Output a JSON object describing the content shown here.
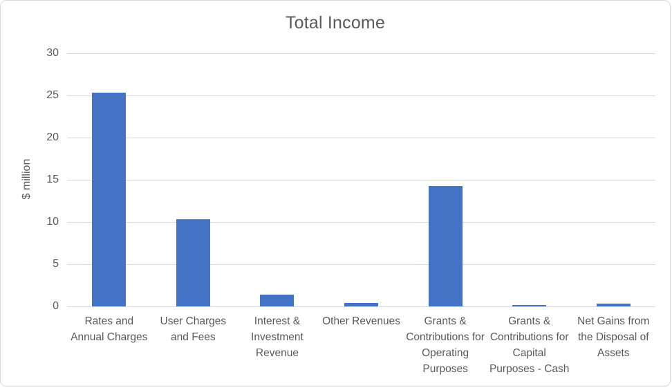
{
  "colors": {
    "bar": "#4472C4",
    "grid": "#D9D9D9",
    "axis_line": "#D9D9D9",
    "text": "#595959",
    "border": "#D8D8D8",
    "background": "#FFFFFF"
  },
  "chart_data": {
    "type": "bar",
    "title": "Total Income",
    "xlabel": "",
    "ylabel": "$ million",
    "categories": [
      "Rates and Annual Charges",
      "User Charges and Fees",
      "Interest & Investment Revenue",
      "Other Revenues",
      "Grants & Contributions for Operating Purposes",
      "Grants & Contributions for Capital Purposes - Cash",
      "Net Gains from the Disposal of Assets"
    ],
    "values": [
      25.3,
      10.3,
      1.4,
      0.4,
      14.3,
      0.2,
      0.3
    ],
    "ylim": [
      0,
      30
    ],
    "yticks": [
      0,
      5,
      10,
      15,
      20,
      25,
      30
    ],
    "grid": true,
    "legend": false
  }
}
